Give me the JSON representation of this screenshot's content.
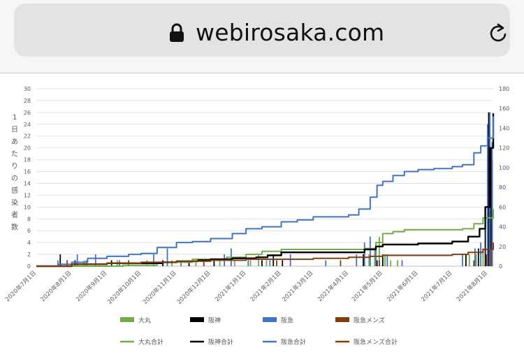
{
  "browser": {
    "url": "webirosaka.com",
    "lock_icon": "lock-icon",
    "reload_icon": "reload-icon"
  },
  "chart_data": {
    "type": "bar+line",
    "ylabel_left": "1日あたりの感染者数",
    "ylim_left": [
      0,
      30
    ],
    "yticks_left": [
      0,
      2,
      4,
      6,
      8,
      10,
      12,
      14,
      16,
      18,
      20,
      22,
      24,
      26,
      28,
      30
    ],
    "ylim_right": [
      0,
      180
    ],
    "yticks_right": [
      0,
      20,
      40,
      60,
      80,
      100,
      120,
      140,
      160,
      180
    ],
    "xlim": [
      "2020-07-01",
      "2021-08-06"
    ],
    "xticks": [
      {
        "date": "2020-07-01",
        "label": "2020年7月1日"
      },
      {
        "date": "2020-08-01",
        "label": "2020年8月1日"
      },
      {
        "date": "2020-09-01",
        "label": "2020年9月1日"
      },
      {
        "date": "2020-10-01",
        "label": "2020年10月1日"
      },
      {
        "date": "2020-11-01",
        "label": "2020年11月1日"
      },
      {
        "date": "2020-12-01",
        "label": "2020年12月1日"
      },
      {
        "date": "2021-01-01",
        "label": "2021年1月1日"
      },
      {
        "date": "2021-02-01",
        "label": "2021年2月1日"
      },
      {
        "date": "2021-03-01",
        "label": "2021年3月1日"
      },
      {
        "date": "2021-04-01",
        "label": "2021年4月1日"
      },
      {
        "date": "2021-05-01",
        "label": "2021年5月1日"
      },
      {
        "date": "2021-06-01",
        "label": "2021年6月1日"
      },
      {
        "date": "2021-07-01",
        "label": "2021年7月1日"
      },
      {
        "date": "2021-08-01",
        "label": "2021年8月1日"
      }
    ],
    "grid": true,
    "legend_position": "bottom",
    "series": [
      {
        "name": "大丸合計",
        "kind": "line",
        "axis": "right",
        "color": "#70ad47",
        "points": [
          [
            "2020-07-01",
            0
          ],
          [
            "2020-08-15",
            0
          ],
          [
            "2020-09-15",
            1
          ],
          [
            "2020-10-15",
            4
          ],
          [
            "2020-11-15",
            7
          ],
          [
            "2020-12-15",
            9
          ],
          [
            "2021-01-01",
            12
          ],
          [
            "2021-01-15",
            15
          ],
          [
            "2021-02-01",
            17
          ],
          [
            "2021-03-01",
            17
          ],
          [
            "2021-04-01",
            17
          ],
          [
            "2021-04-15",
            18
          ],
          [
            "2021-04-25",
            24
          ],
          [
            "2021-05-01",
            33
          ],
          [
            "2021-05-10",
            35
          ],
          [
            "2021-05-20",
            37
          ],
          [
            "2021-06-15",
            37
          ],
          [
            "2021-07-01",
            37
          ],
          [
            "2021-07-10",
            38
          ],
          [
            "2021-07-20",
            43
          ],
          [
            "2021-07-28",
            49
          ],
          [
            "2021-08-06",
            58
          ]
        ]
      },
      {
        "name": "阪神合計",
        "kind": "line",
        "axis": "right",
        "color": "#000000",
        "points": [
          [
            "2020-07-01",
            0
          ],
          [
            "2020-08-01",
            2
          ],
          [
            "2020-09-01",
            3
          ],
          [
            "2020-10-01",
            3
          ],
          [
            "2020-10-20",
            4
          ],
          [
            "2020-11-01",
            5
          ],
          [
            "2020-11-20",
            6
          ],
          [
            "2020-12-01",
            7
          ],
          [
            "2020-12-20",
            8
          ],
          [
            "2021-01-10",
            9
          ],
          [
            "2021-01-20",
            11
          ],
          [
            "2021-02-01",
            14
          ],
          [
            "2021-03-01",
            14
          ],
          [
            "2021-04-01",
            14
          ],
          [
            "2021-04-15",
            17
          ],
          [
            "2021-04-25",
            20
          ],
          [
            "2021-05-01",
            22
          ],
          [
            "2021-06-01",
            23
          ],
          [
            "2021-07-01",
            25
          ],
          [
            "2021-07-15",
            30
          ],
          [
            "2021-07-25",
            38
          ],
          [
            "2021-07-30",
            60
          ],
          [
            "2021-08-03",
            120
          ],
          [
            "2021-08-06",
            155
          ]
        ]
      },
      {
        "name": "阪急合計",
        "kind": "line",
        "axis": "right",
        "color": "#4472c4",
        "points": [
          [
            "2020-07-01",
            0
          ],
          [
            "2020-07-20",
            2
          ],
          [
            "2020-08-01",
            4
          ],
          [
            "2020-08-15",
            8
          ],
          [
            "2020-09-01",
            10
          ],
          [
            "2020-09-20",
            12
          ],
          [
            "2020-10-01",
            13
          ],
          [
            "2020-10-15",
            19
          ],
          [
            "2020-11-01",
            24
          ],
          [
            "2020-11-15",
            25
          ],
          [
            "2020-12-01",
            28
          ],
          [
            "2020-12-20",
            33
          ],
          [
            "2021-01-01",
            38
          ],
          [
            "2021-01-15",
            40
          ],
          [
            "2021-02-01",
            45
          ],
          [
            "2021-02-15",
            47
          ],
          [
            "2021-03-01",
            50
          ],
          [
            "2021-03-20",
            50
          ],
          [
            "2021-04-01",
            52
          ],
          [
            "2021-04-10",
            58
          ],
          [
            "2021-04-20",
            70
          ],
          [
            "2021-04-26",
            82
          ],
          [
            "2021-05-01",
            86
          ],
          [
            "2021-05-10",
            92
          ],
          [
            "2021-05-20",
            96
          ],
          [
            "2021-06-01",
            98
          ],
          [
            "2021-06-15",
            99
          ],
          [
            "2021-07-01",
            101
          ],
          [
            "2021-07-10",
            103
          ],
          [
            "2021-07-20",
            115
          ],
          [
            "2021-07-26",
            122
          ],
          [
            "2021-08-01",
            130
          ],
          [
            "2021-08-06",
            152
          ]
        ]
      },
      {
        "name": "阪急メンズ合計",
        "kind": "line",
        "axis": "right",
        "color": "#843c0c",
        "points": [
          [
            "2020-07-01",
            0
          ],
          [
            "2020-08-01",
            2
          ],
          [
            "2020-09-01",
            3
          ],
          [
            "2020-10-01",
            4
          ],
          [
            "2020-11-01",
            5
          ],
          [
            "2020-12-01",
            6
          ],
          [
            "2021-01-01",
            7
          ],
          [
            "2021-02-01",
            7
          ],
          [
            "2021-03-01",
            8
          ],
          [
            "2021-04-01",
            9
          ],
          [
            "2021-04-20",
            10
          ],
          [
            "2021-05-01",
            11
          ],
          [
            "2021-06-01",
            11
          ],
          [
            "2021-07-01",
            12
          ],
          [
            "2021-07-15",
            14
          ],
          [
            "2021-07-28",
            17
          ],
          [
            "2021-08-06",
            24
          ]
        ]
      },
      {
        "name": "大丸",
        "kind": "bar",
        "axis": "left",
        "color": "#70ad47",
        "points": [
          [
            "2020-08-12",
            1
          ],
          [
            "2020-09-10",
            1
          ],
          [
            "2020-10-06",
            1
          ],
          [
            "2020-10-28",
            1
          ],
          [
            "2020-11-18",
            1
          ],
          [
            "2020-12-09",
            1
          ],
          [
            "2020-12-22",
            1
          ],
          [
            "2021-01-05",
            1
          ],
          [
            "2021-01-12",
            2
          ],
          [
            "2021-01-19",
            1
          ],
          [
            "2021-04-19",
            2
          ],
          [
            "2021-04-24",
            3
          ],
          [
            "2021-04-28",
            5
          ],
          [
            "2021-05-03",
            2
          ],
          [
            "2021-05-08",
            1
          ],
          [
            "2021-05-14",
            1
          ],
          [
            "2021-07-16",
            2
          ],
          [
            "2021-07-22",
            2
          ],
          [
            "2021-07-28",
            3
          ],
          [
            "2021-08-03",
            4
          ]
        ]
      },
      {
        "name": "阪神",
        "kind": "bar",
        "axis": "left",
        "color": "#000000",
        "points": [
          [
            "2020-07-22",
            2
          ],
          [
            "2020-08-04",
            1
          ],
          [
            "2020-09-05",
            1
          ],
          [
            "2020-10-20",
            1
          ],
          [
            "2020-11-12",
            1
          ],
          [
            "2020-12-04",
            1
          ],
          [
            "2021-01-15",
            1
          ],
          [
            "2021-01-25",
            2
          ],
          [
            "2021-02-02",
            1
          ],
          [
            "2021-04-14",
            2
          ],
          [
            "2021-04-26",
            1
          ],
          [
            "2021-05-01",
            2
          ],
          [
            "2021-07-13",
            2
          ],
          [
            "2021-07-24",
            3
          ],
          [
            "2021-07-30",
            8
          ],
          [
            "2021-08-02",
            26
          ],
          [
            "2021-08-04",
            20
          ],
          [
            "2021-08-05",
            18
          ]
        ]
      },
      {
        "name": "阪急",
        "kind": "bar",
        "axis": "left",
        "color": "#4472c4",
        "points": [
          [
            "2020-07-20",
            1
          ],
          [
            "2020-08-06",
            2
          ],
          [
            "2020-08-14",
            1
          ],
          [
            "2020-08-22",
            2
          ],
          [
            "2020-09-12",
            1
          ],
          [
            "2020-10-12",
            2
          ],
          [
            "2020-10-24",
            3
          ],
          [
            "2020-11-05",
            1
          ],
          [
            "2020-12-13",
            2
          ],
          [
            "2020-12-19",
            3
          ],
          [
            "2021-01-03",
            1
          ],
          [
            "2021-01-22",
            1
          ],
          [
            "2021-02-09",
            2
          ],
          [
            "2021-03-12",
            1
          ],
          [
            "2021-04-08",
            2
          ],
          [
            "2021-04-15",
            4
          ],
          [
            "2021-04-20",
            5
          ],
          [
            "2021-04-25",
            3
          ],
          [
            "2021-05-05",
            2
          ],
          [
            "2021-05-18",
            1
          ],
          [
            "2021-07-10",
            2
          ],
          [
            "2021-07-21",
            3
          ],
          [
            "2021-07-26",
            4
          ],
          [
            "2021-08-01",
            24
          ],
          [
            "2021-08-03",
            26
          ],
          [
            "2021-08-05",
            21
          ]
        ]
      },
      {
        "name": "阪急メンズ",
        "kind": "bar",
        "axis": "left",
        "color": "#843c0c",
        "points": [
          [
            "2020-07-28",
            1
          ],
          [
            "2020-09-20",
            1
          ],
          [
            "2020-11-25",
            1
          ],
          [
            "2021-01-28",
            1
          ],
          [
            "2021-03-25",
            1
          ],
          [
            "2021-04-28",
            1
          ],
          [
            "2021-07-20",
            1
          ],
          [
            "2021-07-31",
            2
          ],
          [
            "2021-08-04",
            3
          ]
        ]
      }
    ],
    "legend": [
      {
        "label": "大丸",
        "kind": "bar",
        "color": "#70ad47"
      },
      {
        "label": "阪神",
        "kind": "bar",
        "color": "#000000"
      },
      {
        "label": "阪急",
        "kind": "bar",
        "color": "#4472c4"
      },
      {
        "label": "阪急メンズ",
        "kind": "bar",
        "color": "#843c0c"
      },
      {
        "label": "大丸合計",
        "kind": "line",
        "color": "#70ad47"
      },
      {
        "label": "阪神合計",
        "kind": "line",
        "color": "#000000"
      },
      {
        "label": "阪急合計",
        "kind": "line",
        "color": "#4472c4"
      },
      {
        "label": "阪急メンズ合計",
        "kind": "line",
        "color": "#843c0c"
      }
    ]
  }
}
